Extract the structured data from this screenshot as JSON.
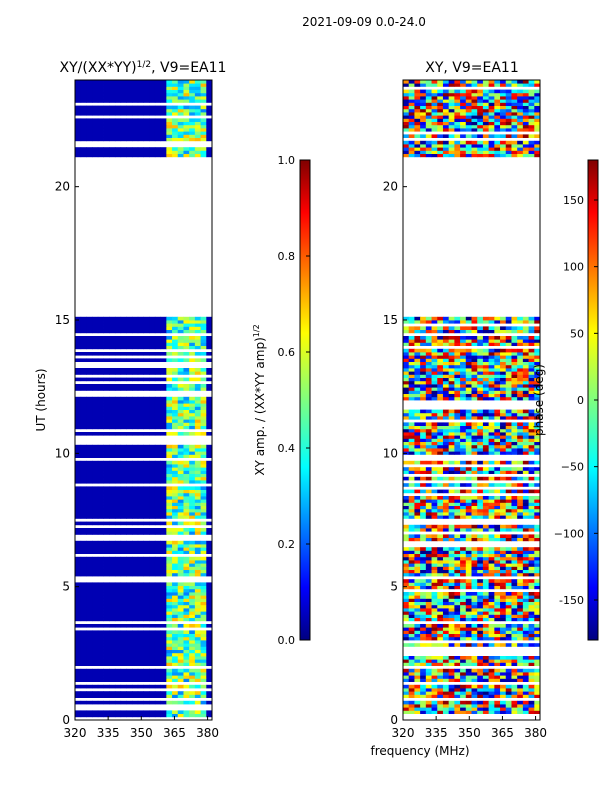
{
  "figure_title": "2021-09-09 0.0-24.0",
  "chart_data": [
    {
      "type": "heatmap",
      "title": "XY/(XX*YY)",
      "title_exponent": "1/2",
      "title_suffix": ", V9=EA11",
      "xlabel": "",
      "ylabel": "UT (hours)",
      "xlim": [
        320,
        382
      ],
      "ylim": [
        0,
        24
      ],
      "xticks": [
        "320",
        "335",
        "350",
        "365",
        "380"
      ],
      "yticks": [
        "0",
        "5",
        "10",
        "15",
        "20"
      ],
      "colorbar": {
        "label": "XY amp. / (XX*YY amp)",
        "label_exponent": "1/2",
        "range": [
          0.0,
          1.0
        ],
        "ticks": [
          "0.0",
          "0.2",
          "0.4",
          "0.6",
          "0.8",
          "1.0"
        ],
        "colormap": "jet"
      },
      "data_gap_hours": [
        21.0,
        15.0
      ],
      "bright_band_mhz": [
        361,
        380
      ],
      "background_level": 0.05
    },
    {
      "type": "heatmap",
      "title": "XY, V9=EA11",
      "xlabel": "frequency (MHz)",
      "ylabel": "",
      "xlim": [
        320,
        382
      ],
      "ylim": [
        0,
        24
      ],
      "xticks": [
        "320",
        "335",
        "350",
        "365",
        "380"
      ],
      "yticks": [
        "0",
        "5",
        "10",
        "15",
        "20"
      ],
      "colorbar": {
        "label": "phase (deg)",
        "range": [
          -180,
          180
        ],
        "ticks": [
          "-150",
          "−100",
          "−50",
          "0",
          "50",
          "100",
          "150"
        ],
        "colormap": "jet"
      },
      "data_gap_hours": [
        21.0,
        15.0
      ]
    }
  ]
}
